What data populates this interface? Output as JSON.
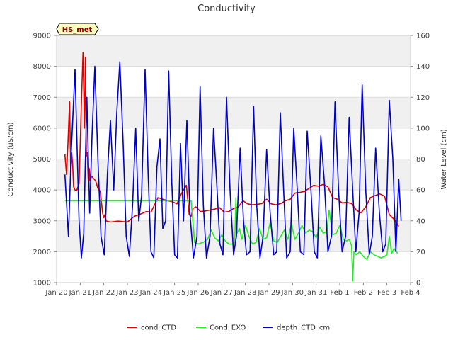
{
  "chart_data": {
    "type": "line",
    "title": "Conductivity",
    "badge": "HS_met",
    "ylabel": "Conductivity (uS/cm)",
    "y2label": "Water Level (cm)",
    "xlabel": "",
    "x_ticks": [
      "Jan 20",
      "Jan 21",
      "Jan 22",
      "Jan 23",
      "Jan 24",
      "Jan 25",
      "Jan 26",
      "Jan 27",
      "Jan 28",
      "Jan 29",
      "Jan 30",
      "Jan 31",
      "Feb 1",
      "Feb 2",
      "Feb 3",
      "Feb 4"
    ],
    "xlim": [
      0,
      15
    ],
    "ylim": [
      1000,
      9000
    ],
    "y_ticks": [
      1000,
      2000,
      3000,
      4000,
      5000,
      6000,
      7000,
      8000,
      9000
    ],
    "y2lim": [
      0,
      160
    ],
    "y2_ticks": [
      0,
      20,
      40,
      60,
      80,
      100,
      120,
      140,
      160
    ],
    "grid": true,
    "legend_position": "bottom",
    "colors": {
      "cond_CTD": "#dd0000",
      "Cond_EXO": "#22ee22",
      "depth_CTD_cm": "#0000cc",
      "band": "#f0f0f0",
      "badge_bg": "#ffffc0"
    },
    "series": [
      {
        "name": "cond_CTD",
        "axis": "left",
        "x": [
          0.35,
          0.42,
          0.48,
          0.55,
          0.6,
          0.64,
          0.68,
          0.72,
          0.78,
          0.85,
          0.95,
          1.05,
          1.12,
          1.18,
          1.22,
          1.26,
          1.3,
          1.34,
          1.38,
          1.42,
          1.48,
          1.55,
          1.65,
          1.75,
          1.85,
          1.95,
          2.0,
          2.05,
          2.1,
          2.15,
          2.3,
          2.6,
          3.0,
          3.3,
          3.5,
          3.8,
          4.0,
          4.3,
          4.5,
          4.7,
          4.9,
          5.1,
          5.3,
          5.5,
          5.62,
          5.7,
          5.78,
          5.9,
          6.1,
          6.3,
          6.5,
          6.7,
          6.9,
          7.1,
          7.3,
          7.5,
          7.7,
          7.9,
          8.1,
          8.3,
          8.5,
          8.7,
          8.9,
          9.1,
          9.3,
          9.5,
          9.7,
          9.9,
          10.1,
          10.3,
          10.5,
          10.7,
          10.9,
          11.1,
          11.3,
          11.5,
          11.7,
          11.9,
          12.1,
          12.3,
          12.5,
          12.7,
          12.9,
          13.1,
          13.3,
          13.5,
          13.7,
          13.9,
          14.1,
          14.3,
          14.5
        ],
        "values": [
          5150,
          4500,
          5500,
          6850,
          4500,
          5200,
          4800,
          4100,
          4000,
          3980,
          4200,
          6800,
          8450,
          6000,
          8300,
          5100,
          5200,
          4300,
          4700,
          4300,
          4450,
          4380,
          4300,
          4050,
          3950,
          3250,
          3100,
          3200,
          3000,
          2980,
          2960,
          2990,
          2960,
          3150,
          3200,
          3300,
          3280,
          3750,
          3700,
          3650,
          3620,
          3550,
          3900,
          4150,
          3200,
          3150,
          3400,
          3450,
          3300,
          3320,
          3350,
          3380,
          3430,
          3280,
          3300,
          3400,
          3450,
          3650,
          3550,
          3520,
          3530,
          3560,
          3700,
          3550,
          3520,
          3560,
          3650,
          3700,
          3900,
          3920,
          3950,
          4050,
          4150,
          4120,
          4180,
          4100,
          3750,
          3700,
          3580,
          3600,
          3560,
          3350,
          3260,
          3450,
          3750,
          3820,
          3870,
          3800,
          3200,
          3050,
          2820
        ]
      },
      {
        "name": "Cond_EXO",
        "axis": "left",
        "x": [
          0.35,
          1.0,
          2.0,
          3.0,
          4.0,
          5.0,
          5.7,
          5.85,
          6.0,
          6.2,
          6.4,
          6.55,
          6.7,
          6.85,
          7.0,
          7.15,
          7.3,
          7.45,
          7.55,
          7.6,
          7.65,
          7.75,
          7.85,
          8.0,
          8.15,
          8.3,
          8.45,
          8.6,
          8.75,
          8.9,
          9.05,
          9.2,
          9.35,
          9.5,
          9.65,
          9.8,
          9.95,
          10.1,
          10.25,
          10.4,
          10.55,
          10.7,
          10.85,
          11.0,
          11.15,
          11.3,
          11.45,
          11.55,
          11.7,
          11.85,
          12.0,
          12.15,
          12.3,
          12.4,
          12.45,
          12.5,
          12.55,
          12.6,
          12.7,
          12.85,
          13.0,
          13.15,
          13.3,
          13.45,
          13.6,
          13.75,
          13.9,
          14.0,
          14.1,
          14.2,
          14.3,
          14.45
        ],
        "values": [
          3650,
          3650,
          3650,
          3650,
          3650,
          3650,
          3650,
          2300,
          2250,
          2300,
          2400,
          2700,
          2450,
          2350,
          2550,
          2350,
          2250,
          2250,
          2300,
          3750,
          2600,
          2750,
          2400,
          2850,
          2500,
          2250,
          2300,
          2750,
          2400,
          2450,
          2950,
          2350,
          2300,
          2500,
          2700,
          2400,
          2900,
          2400,
          2600,
          2850,
          2600,
          2700,
          2650,
          2450,
          2800,
          2600,
          2650,
          3350,
          2550,
          2600,
          2850,
          2400,
          2350,
          2400,
          2300,
          2200,
          1050,
          2000,
          1900,
          2000,
          1850,
          1750,
          2000,
          1900,
          1850,
          1800,
          1850,
          1900,
          2500,
          1950,
          2100,
          1950
        ]
      },
      {
        "name": "depth_CTD_cm",
        "axis": "right",
        "x": [
          0.35,
          0.5,
          0.62,
          0.78,
          0.95,
          1.05,
          1.15,
          1.28,
          1.4,
          1.5,
          1.62,
          1.75,
          1.88,
          2.02,
          2.15,
          2.28,
          2.42,
          2.55,
          2.68,
          2.82,
          2.95,
          3.08,
          3.22,
          3.35,
          3.48,
          3.6,
          3.75,
          3.88,
          4.0,
          4.12,
          4.25,
          4.38,
          4.5,
          4.62,
          4.75,
          4.88,
          5.0,
          5.12,
          5.25,
          5.38,
          5.52,
          5.65,
          5.8,
          5.95,
          6.08,
          6.22,
          6.35,
          6.5,
          6.65,
          6.8,
          6.92,
          7.05,
          7.2,
          7.35,
          7.5,
          7.62,
          7.78,
          7.92,
          8.05,
          8.2,
          8.35,
          8.48,
          8.62,
          8.75,
          8.9,
          9.05,
          9.2,
          9.33,
          9.48,
          9.62,
          9.75,
          9.9,
          10.05,
          10.2,
          10.33,
          10.48,
          10.62,
          10.78,
          10.92,
          11.05,
          11.2,
          11.35,
          11.5,
          11.65,
          11.8,
          11.95,
          12.1,
          12.25,
          12.4,
          12.55,
          12.68,
          12.82,
          12.95,
          13.1,
          13.25,
          13.38,
          13.52,
          13.68,
          13.82,
          13.95,
          14.1,
          14.25,
          14.38,
          14.5,
          14.6
        ],
        "values": [
          70,
          30,
          85,
          138,
          40,
          16,
          32,
          120,
          45,
          95,
          140,
          80,
          30,
          18,
          70,
          105,
          60,
          110,
          143,
          90,
          30,
          17,
          50,
          100,
          40,
          56,
          138,
          70,
          20,
          16,
          75,
          93,
          35,
          40,
          137,
          65,
          18,
          16,
          90,
          40,
          105,
          45,
          16,
          30,
          127,
          50,
          16,
          30,
          100,
          60,
          25,
          18,
          120,
          60,
          18,
          30,
          87,
          40,
          18,
          20,
          114,
          50,
          16,
          30,
          86,
          45,
          18,
          20,
          110,
          60,
          16,
          20,
          100,
          60,
          20,
          18,
          98,
          60,
          20,
          16,
          95,
          65,
          20,
          30,
          117,
          60,
          20,
          30,
          107,
          60,
          20,
          45,
          128,
          60,
          18,
          30,
          87,
          45,
          20,
          25,
          118,
          80,
          20,
          67,
          40
        ]
      }
    ]
  }
}
